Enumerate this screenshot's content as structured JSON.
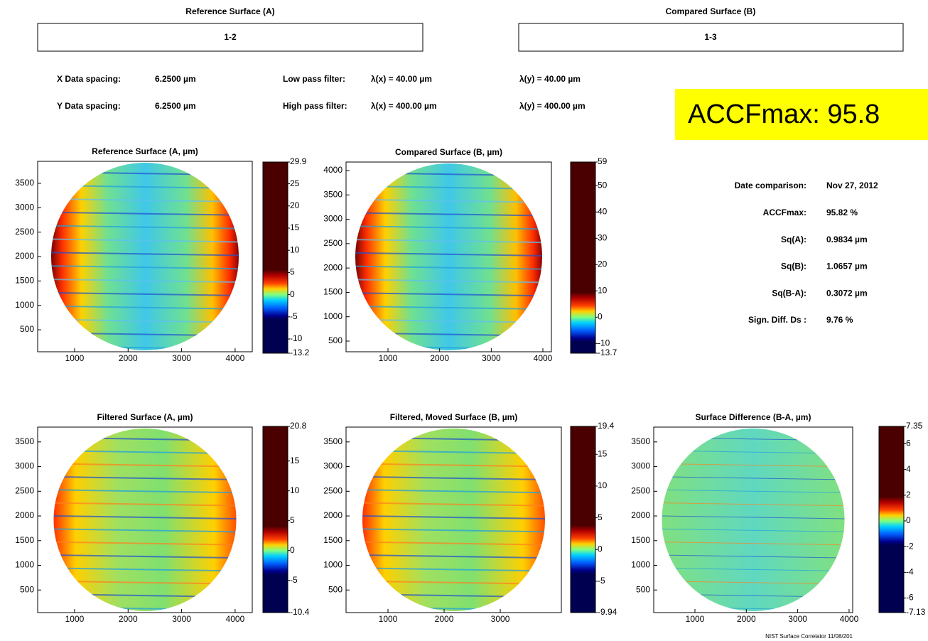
{
  "header": {
    "reference_title": "Reference Surface (A)",
    "reference_id": "1-2",
    "compared_title": "Compared Surface (B)",
    "compared_id": "1-3"
  },
  "parameters": [
    {
      "label": "X Data spacing:",
      "value": "6.2500 µm",
      "filter": "Low pass filter:",
      "lx": "λ(x) = 40.00 µm",
      "ly": "λ(y) = 40.00 µm"
    },
    {
      "label": "Y Data spacing:",
      "value": "6.2500 µm",
      "filter": "High pass filter:",
      "lx": "λ(x) = 400.00 µm",
      "ly": "λ(y) = 400.00 µm"
    }
  ],
  "banner": "ACCFmax: 95.8",
  "summary": [
    {
      "label": "Date comparison:",
      "value": "Nov 27, 2012"
    },
    {
      "label": "ACCFmax:",
      "value": "95.82 %"
    },
    {
      "label": "Sq(A):",
      "value": "0.9834 µm"
    },
    {
      "label": "Sq(B):",
      "value": "1.0657 µm"
    },
    {
      "label": "Sq(B-A):",
      "value": "0.3072 µm"
    },
    {
      "label": "Sign. Diff. Ds :",
      "value": "9.76 %"
    }
  ],
  "plots": [
    {
      "title": "Reference Surface (A, µm)",
      "xlim": [
        310,
        4320
      ],
      "ylim": [
        50,
        3950
      ],
      "xticks": [
        1000,
        2000,
        3000,
        4000
      ],
      "yticks": [
        500,
        1000,
        1500,
        2000,
        2500,
        3000,
        3500
      ],
      "colorbar": [
        29.9,
        25,
        20,
        15,
        10,
        5,
        0,
        -5,
        -10,
        -13.2
      ]
    },
    {
      "title": "Compared Surface (B, µm)",
      "xlim": [
        188,
        4165
      ],
      "ylim": [
        281,
        4175
      ],
      "xticks": [
        1000,
        2000,
        3000,
        4000
      ],
      "yticks": [
        500,
        1000,
        1500,
        2000,
        2500,
        3000,
        3500,
        4000
      ],
      "colorbar": [
        59,
        50,
        40,
        30,
        20,
        10,
        0,
        -10,
        -13.7
      ]
    },
    {
      "title": "Filtered Surface (A, µm)",
      "xlim": [
        310,
        4320
      ],
      "ylim": [
        43,
        3800
      ],
      "xticks": [
        1000,
        2000,
        3000,
        4000
      ],
      "yticks": [
        500,
        1000,
        1500,
        2000,
        2500,
        3000,
        3500
      ],
      "colorbar": [
        20.8,
        15,
        10,
        5,
        0,
        -5,
        -10.4
      ]
    },
    {
      "title": "Filtered, Moved Surface (B, µm)",
      "xlim": [
        253,
        4088
      ],
      "ylim": [
        43,
        3800
      ],
      "xticks": [
        1000,
        2000,
        3000
      ],
      "yticks": [
        500,
        1000,
        1500,
        2000,
        2500,
        3000,
        3500
      ],
      "colorbar": [
        19.4,
        15,
        10,
        5,
        0,
        -5,
        -9.94
      ]
    },
    {
      "title": "Surface Difference (B-A, µm)",
      "xlim": [
        198,
        4070
      ],
      "ylim": [
        43,
        3800
      ],
      "xticks": [
        1000,
        2000,
        3000,
        4000
      ],
      "yticks": [
        500,
        1000,
        1500,
        2000,
        2500,
        3000,
        3500
      ],
      "colorbar": [
        7.35,
        6,
        4,
        2,
        0,
        -2,
        -4,
        -6,
        -7.13
      ]
    }
  ],
  "footer": "NIST Surface Correlator 11/08/201"
}
